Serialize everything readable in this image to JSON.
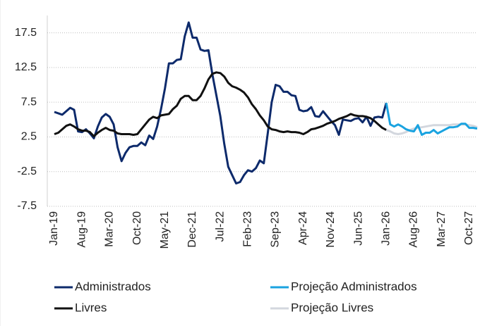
{
  "chart_data": {
    "type": "line",
    "categories": [
      "Jan-19",
      null,
      null,
      null,
      null,
      null,
      null,
      "Aug-19",
      null,
      null,
      null,
      null,
      null,
      null,
      "Mar-20",
      null,
      null,
      null,
      null,
      null,
      null,
      "Oct-20",
      null,
      null,
      null,
      null,
      null,
      null,
      "May-21",
      null,
      null,
      null,
      null,
      null,
      null,
      "Dec-21",
      null,
      null,
      null,
      null,
      null,
      null,
      "Jul-22",
      null,
      null,
      null,
      null,
      null,
      null,
      "Feb-23",
      null,
      null,
      null,
      null,
      null,
      null,
      "Sep-23",
      null,
      null,
      null,
      null,
      null,
      null,
      "Apr-24",
      null,
      null,
      null,
      null,
      null,
      null,
      "Nov-24",
      null,
      null,
      null,
      null,
      null,
      null,
      "Jun-25",
      null,
      null,
      null,
      null,
      null,
      null,
      "Jan-26",
      null,
      null,
      null,
      null,
      null,
      null,
      "Aug-26",
      null,
      null,
      null,
      null,
      null,
      null,
      "Mar-27",
      null,
      null,
      null,
      null,
      null,
      null,
      "Oct-27",
      null,
      null
    ],
    "ylim": [
      -7.5,
      20
    ],
    "yticks": [
      -7.5,
      -2.5,
      2.5,
      7.5,
      12.5,
      17.5
    ],
    "grid": true,
    "series": [
      {
        "name": "Administrados",
        "color": "#0d2a6b",
        "values": [
          6.1,
          5.9,
          5.7,
          6.2,
          6.7,
          6.4,
          3.3,
          3.2,
          3.6,
          3.0,
          2.3,
          4.0,
          5.3,
          5.8,
          5.4,
          4.3,
          1.0,
          -1.0,
          0.2,
          1.0,
          1.2,
          1.2,
          1.7,
          1.3,
          2.7,
          2.2,
          4.0,
          6.5,
          9.5,
          13.1,
          13.1,
          13.6,
          13.7,
          17.0,
          19.0,
          16.8,
          16.8,
          15.1,
          14.9,
          15.0,
          11.5,
          8.5,
          5.5,
          1.5,
          -1.8,
          -3.0,
          -4.2,
          -4.0,
          -3.0,
          -2.3,
          -2.5,
          -2.0,
          -0.9,
          -1.3,
          3.0,
          7.5,
          10.0,
          9.8,
          9.0,
          9.0,
          8.5,
          8.4,
          6.4,
          6.2,
          6.3,
          6.8,
          5.5,
          5.4,
          6.2,
          5.5,
          4.8,
          4.2,
          2.8,
          5.0,
          4.9,
          4.8,
          5.1,
          5.2,
          4.6,
          5.4,
          4.1,
          5.3,
          5.4,
          5.3,
          7.4,
          null,
          null,
          null,
          null,
          null,
          null,
          null,
          null,
          null,
          null,
          null,
          null,
          null,
          null,
          null,
          null,
          null,
          null,
          null,
          null,
          null,
          null,
          null
        ]
      },
      {
        "name": "Livres",
        "color": "#111111",
        "values": [
          2.9,
          3.1,
          3.6,
          4.1,
          4.3,
          4.0,
          3.6,
          3.4,
          3.4,
          3.2,
          2.6,
          3.1,
          3.5,
          3.8,
          3.5,
          3.4,
          3.0,
          2.9,
          2.9,
          2.9,
          2.8,
          2.9,
          3.6,
          4.3,
          5.0,
          5.4,
          5.2,
          5.6,
          5.7,
          5.8,
          6.5,
          7.0,
          8.0,
          8.4,
          8.4,
          7.8,
          7.8,
          8.4,
          9.5,
          10.8,
          11.6,
          11.8,
          11.7,
          11.2,
          10.3,
          9.8,
          9.6,
          9.3,
          8.9,
          8.2,
          7.2,
          6.5,
          5.6,
          4.9,
          4.0,
          3.6,
          3.5,
          3.3,
          3.2,
          3.3,
          3.2,
          3.2,
          3.1,
          2.9,
          3.2,
          3.6,
          3.7,
          3.9,
          4.1,
          4.4,
          4.6,
          4.8,
          5.1,
          5.3,
          5.5,
          5.8,
          5.6,
          5.5,
          5.5,
          5.4,
          5.2,
          4.8,
          4.3,
          3.8,
          3.5,
          null,
          null,
          null,
          null,
          null,
          null,
          null,
          null,
          null,
          null,
          null,
          null,
          null,
          null,
          null,
          null,
          null,
          null,
          null,
          null,
          null,
          null,
          null
        ]
      },
      {
        "name": "Projeção Administrados",
        "color": "#1aa3e0",
        "values": [
          null,
          null,
          null,
          null,
          null,
          null,
          null,
          null,
          null,
          null,
          null,
          null,
          null,
          null,
          null,
          null,
          null,
          null,
          null,
          null,
          null,
          null,
          null,
          null,
          null,
          null,
          null,
          null,
          null,
          null,
          null,
          null,
          null,
          null,
          null,
          null,
          null,
          null,
          null,
          null,
          null,
          null,
          null,
          null,
          null,
          null,
          null,
          null,
          null,
          null,
          null,
          null,
          null,
          null,
          null,
          null,
          null,
          null,
          null,
          null,
          null,
          null,
          null,
          null,
          null,
          null,
          null,
          null,
          null,
          null,
          null,
          null,
          null,
          null,
          null,
          null,
          null,
          null,
          null,
          null,
          null,
          null,
          null,
          null,
          7.4,
          4.3,
          4.0,
          4.3,
          4.0,
          3.6,
          3.4,
          3.3,
          4.2,
          2.8,
          3.1,
          3.1,
          3.5,
          3.0,
          3.3,
          3.6,
          3.9,
          3.9,
          4.0,
          4.4,
          4.4,
          3.8,
          3.8,
          3.7
        ]
      },
      {
        "name": "Projeção Livres",
        "color": "#d3d7de",
        "values": [
          null,
          null,
          null,
          null,
          null,
          null,
          null,
          null,
          null,
          null,
          null,
          null,
          null,
          null,
          null,
          null,
          null,
          null,
          null,
          null,
          null,
          null,
          null,
          null,
          null,
          null,
          null,
          null,
          null,
          null,
          null,
          null,
          null,
          null,
          null,
          null,
          null,
          null,
          null,
          null,
          null,
          null,
          null,
          null,
          null,
          null,
          null,
          null,
          null,
          null,
          null,
          null,
          null,
          null,
          null,
          null,
          null,
          null,
          null,
          null,
          null,
          null,
          null,
          null,
          null,
          null,
          null,
          null,
          null,
          null,
          null,
          null,
          null,
          null,
          null,
          null,
          null,
          null,
          null,
          null,
          null,
          null,
          null,
          null,
          3.5,
          3.3,
          3.0,
          2.9,
          3.0,
          3.2,
          3.5,
          3.7,
          3.8,
          3.9,
          4.0,
          4.1,
          4.2,
          4.2,
          4.2,
          4.2,
          4.2,
          4.3,
          4.3,
          4.3,
          4.3,
          4.2,
          4.1,
          3.9
        ]
      }
    ]
  }
}
